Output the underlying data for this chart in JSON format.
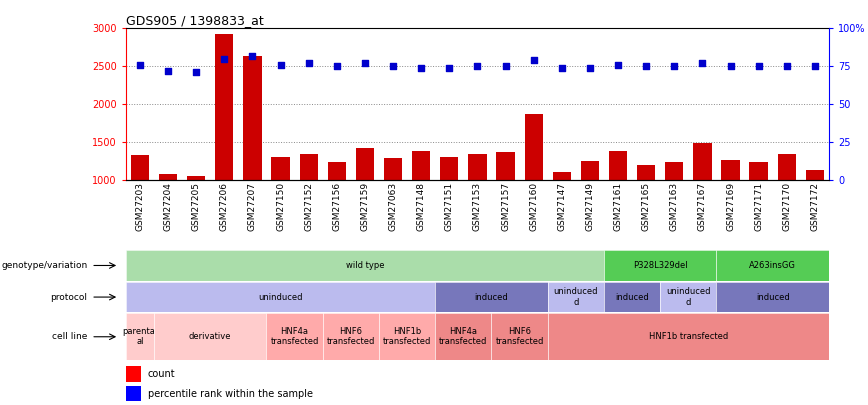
{
  "title": "GDS905 / 1398833_at",
  "samples": [
    "GSM27203",
    "GSM27204",
    "GSM27205",
    "GSM27206",
    "GSM27207",
    "GSM27150",
    "GSM27152",
    "GSM27156",
    "GSM27159",
    "GSM27063",
    "GSM27148",
    "GSM27151",
    "GSM27153",
    "GSM27157",
    "GSM27160",
    "GSM27147",
    "GSM27149",
    "GSM27161",
    "GSM27165",
    "GSM27163",
    "GSM27167",
    "GSM27169",
    "GSM27171",
    "GSM27170",
    "GSM27172"
  ],
  "counts": [
    1330,
    1080,
    1060,
    2920,
    2640,
    1310,
    1340,
    1240,
    1420,
    1290,
    1380,
    1310,
    1340,
    1370,
    1870,
    1110,
    1250,
    1390,
    1200,
    1240,
    1490,
    1270,
    1240,
    1350,
    1140
  ],
  "percentiles": [
    76,
    72,
    71,
    80,
    82,
    76,
    77,
    75,
    77,
    75,
    74,
    74,
    75,
    75,
    79,
    74,
    74,
    76,
    75,
    75,
    77,
    75,
    75,
    75,
    75
  ],
  "ylim_left": [
    1000,
    3000
  ],
  "ylim_right": [
    0,
    100
  ],
  "bar_color": "#cc0000",
  "dot_color": "#0000cc",
  "background_color": "#ffffff",
  "xticklabel_bg": "#cccccc",
  "genotype_row": {
    "label": "genotype/variation",
    "segments": [
      {
        "text": "wild type",
        "start": 0,
        "end": 17,
        "color": "#aaddaa"
      },
      {
        "text": "P328L329del",
        "start": 17,
        "end": 21,
        "color": "#55cc55"
      },
      {
        "text": "A263insGG",
        "start": 21,
        "end": 25,
        "color": "#55cc55"
      }
    ]
  },
  "protocol_row": {
    "label": "protocol",
    "segments": [
      {
        "text": "uninduced",
        "start": 0,
        "end": 11,
        "color": "#bbbbee"
      },
      {
        "text": "induced",
        "start": 11,
        "end": 15,
        "color": "#7777bb"
      },
      {
        "text": "uninduced\nd",
        "start": 15,
        "end": 17,
        "color": "#bbbbee"
      },
      {
        "text": "induced",
        "start": 17,
        "end": 19,
        "color": "#7777bb"
      },
      {
        "text": "uninduced\nd",
        "start": 19,
        "end": 21,
        "color": "#bbbbee"
      },
      {
        "text": "induced",
        "start": 21,
        "end": 25,
        "color": "#7777bb"
      }
    ]
  },
  "cellline_row": {
    "label": "cell line",
    "segments": [
      {
        "text": "parental\nal",
        "start": 0,
        "end": 1,
        "color": "#ffcccc"
      },
      {
        "text": "derivative",
        "start": 1,
        "end": 5,
        "color": "#ffcccc"
      },
      {
        "text": "HNF4a\ntransfected",
        "start": 5,
        "end": 7,
        "color": "#ffaaaa"
      },
      {
        "text": "HNF6\ntransfected",
        "start": 7,
        "end": 9,
        "color": "#ffaaaa"
      },
      {
        "text": "HNF1b\ntransfected",
        "start": 9,
        "end": 11,
        "color": "#ffaaaa"
      },
      {
        "text": "HNF4a\ntransfected",
        "start": 11,
        "end": 13,
        "color": "#ee8888"
      },
      {
        "text": "HNF6\ntransfected",
        "start": 13,
        "end": 15,
        "color": "#ee8888"
      },
      {
        "text": "HNF1b transfected",
        "start": 15,
        "end": 25,
        "color": "#ee8888"
      }
    ]
  }
}
